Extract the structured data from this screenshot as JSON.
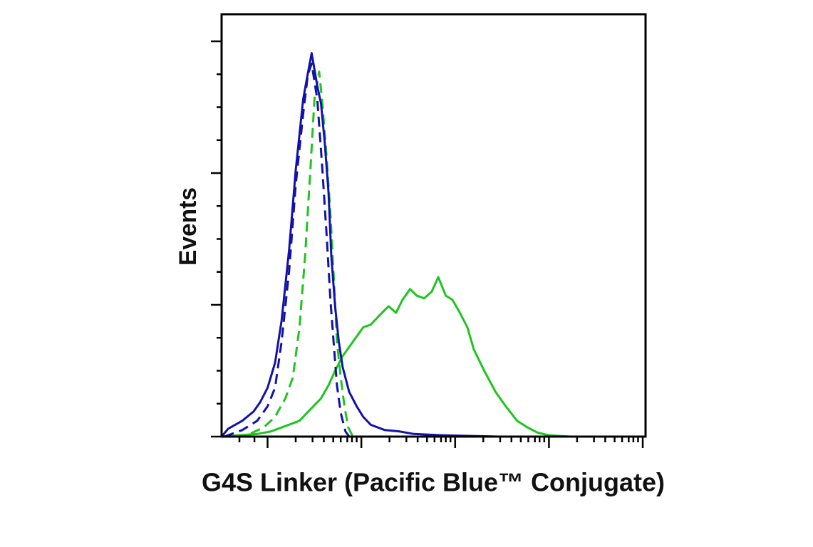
{
  "chart_data": {
    "type": "line",
    "xlabel": "G4S Linker (Pacific Blue™ Conjugate)",
    "ylabel": "Events",
    "xlim": [
      -0.49,
      4.03
    ],
    "ylim": [
      0,
      3.2
    ],
    "xticks": [
      0,
      1,
      2,
      3,
      4
    ],
    "xminor_ticks": [
      -0.3,
      -0.14,
      0.3,
      0.48,
      0.6,
      0.7,
      0.78,
      0.85,
      0.9,
      0.95,
      1.3,
      1.48,
      1.6,
      1.7,
      1.78,
      1.85,
      1.9,
      1.95,
      2.3,
      2.48,
      2.6,
      2.7,
      2.78,
      2.85,
      2.9,
      2.95,
      3.3,
      3.48,
      3.6,
      3.7,
      3.78,
      3.85,
      3.9,
      3.95
    ],
    "yticks": [
      0,
      1,
      2,
      3
    ],
    "yminor_ticks": [
      0.25,
      0.5,
      0.75,
      1.25,
      1.5,
      1.75,
      2.25,
      2.5,
      2.75
    ],
    "series": [
      {
        "color": "#1fc41f",
        "dash": false,
        "x": [
          -0.49,
          -0.11,
          0.04,
          0.19,
          0.34,
          0.46,
          0.57,
          0.65,
          0.72,
          0.8,
          0.91,
          1.02,
          1.1,
          1.18,
          1.29,
          1.37,
          1.44,
          1.52,
          1.59,
          1.67,
          1.75,
          1.82,
          1.9,
          1.97,
          2.05,
          2.13,
          2.2,
          2.31,
          2.43,
          2.54,
          2.66,
          2.77,
          2.88,
          3.0,
          3.23,
          4.03
        ],
        "values": [
          0,
          0.02,
          0.04,
          0.08,
          0.12,
          0.21,
          0.29,
          0.39,
          0.5,
          0.61,
          0.72,
          0.83,
          0.85,
          0.91,
          0.99,
          0.94,
          1.04,
          1.12,
          1.07,
          1.05,
          1.1,
          1.21,
          1.07,
          1.04,
          0.94,
          0.83,
          0.66,
          0.5,
          0.34,
          0.23,
          0.12,
          0.07,
          0.03,
          0.01,
          0,
          0
        ]
      },
      {
        "color": "#1fc41f",
        "dash": true,
        "x": [
          -0.34,
          -0.19,
          -0.04,
          0.08,
          0.19,
          0.27,
          0.34,
          0.4,
          0.46,
          0.5,
          0.55,
          0.58,
          0.63,
          0.67,
          0.71,
          0.74,
          0.78,
          0.82,
          0.86,
          0.91
        ],
        "values": [
          0,
          0.02,
          0.07,
          0.15,
          0.29,
          0.45,
          0.83,
          1.37,
          2.07,
          2.56,
          2.77,
          2.56,
          2.12,
          1.69,
          1.15,
          0.72,
          0.45,
          0.23,
          0.07,
          0
        ]
      },
      {
        "color": "#1212aa",
        "dash": true,
        "x": [
          -0.46,
          -0.27,
          -0.11,
          0,
          0.08,
          0.15,
          0.23,
          0.3,
          0.38,
          0.43,
          0.47,
          0.53,
          0.58,
          0.63,
          0.67,
          0.71,
          0.74,
          0.78,
          0.83,
          0.87
        ],
        "values": [
          0,
          0.05,
          0.12,
          0.23,
          0.37,
          0.72,
          1.26,
          1.91,
          2.45,
          2.75,
          2.83,
          2.56,
          2.07,
          1.53,
          1.04,
          0.66,
          0.39,
          0.18,
          0.04,
          0
        ]
      },
      {
        "color": "#1212aa",
        "dash": false,
        "x": [
          -0.49,
          -0.42,
          -0.27,
          -0.15,
          -0.08,
          0,
          0.08,
          0.15,
          0.23,
          0.3,
          0.38,
          0.42,
          0.47,
          0.53,
          0.57,
          0.61,
          0.65,
          0.68,
          0.72,
          0.76,
          0.8,
          0.87,
          0.95,
          1.02,
          1.1,
          1.25,
          1.4,
          1.56,
          1.86,
          2.47,
          4.03
        ],
        "values": [
          0,
          0.06,
          0.12,
          0.19,
          0.26,
          0.37,
          0.56,
          0.88,
          1.42,
          2.02,
          2.56,
          2.72,
          2.91,
          2.66,
          2.53,
          2.23,
          1.85,
          1.37,
          0.99,
          0.72,
          0.53,
          0.34,
          0.23,
          0.15,
          0.09,
          0.05,
          0.04,
          0.02,
          0.01,
          0,
          0
        ]
      }
    ]
  }
}
